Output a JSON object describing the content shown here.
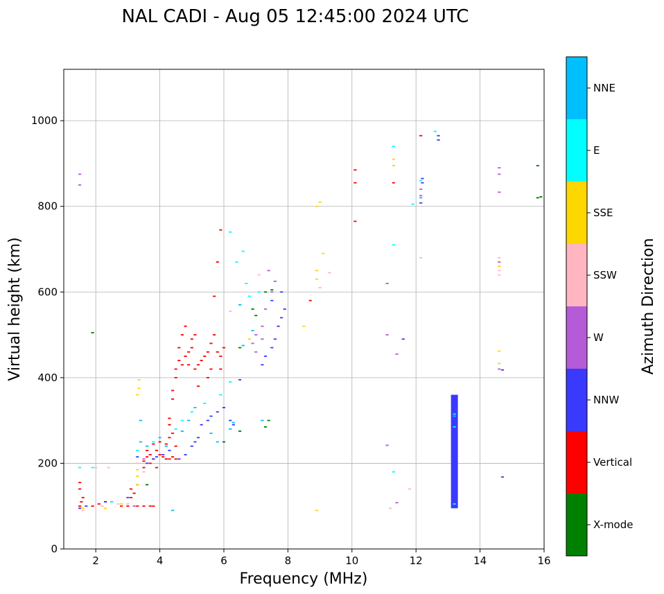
{
  "chart_data": {
    "type": "scatter",
    "title": "NAL CADI - Aug 05 12:45:00 2024 UTC",
    "xlabel": "Frequency (MHz)",
    "ylabel": "Virtual height (km)",
    "xlim": [
      1,
      16
    ],
    "ylim": [
      0,
      1120
    ],
    "xticks": [
      2,
      4,
      6,
      8,
      10,
      12,
      14,
      16
    ],
    "yticks": [
      0,
      200,
      400,
      600,
      800,
      1000
    ],
    "grid": true,
    "colorbar": {
      "label": "Azimuth Direction",
      "categories": [
        {
          "name": "X-mode",
          "color": "#008000"
        },
        {
          "name": "Vertical",
          "color": "#ff0000"
        },
        {
          "name": "NNW",
          "color": "#3a3aff"
        },
        {
          "name": "W",
          "color": "#b55bd8"
        },
        {
          "name": "SSW",
          "color": "#ffb6c1"
        },
        {
          "name": "SSE",
          "color": "#ffd700"
        },
        {
          "name": "E",
          "color": "#00ffff"
        },
        {
          "name": "NNE",
          "color": "#00bfff"
        }
      ]
    },
    "series": [
      {
        "name": "Vertical",
        "points": [
          [
            1.5,
            100
          ],
          [
            1.55,
            110
          ],
          [
            1.6,
            120
          ],
          [
            1.5,
            140
          ],
          [
            1.5,
            155
          ],
          [
            1.9,
            100
          ],
          [
            2.1,
            105
          ],
          [
            2.3,
            110
          ],
          [
            2.5,
            110
          ],
          [
            2.8,
            100
          ],
          [
            3.0,
            100
          ],
          [
            3.1,
            120
          ],
          [
            3.1,
            140
          ],
          [
            3.2,
            130
          ],
          [
            3.3,
            100
          ],
          [
            3.5,
            100
          ],
          [
            3.7,
            100
          ],
          [
            3.8,
            100
          ],
          [
            3.5,
            190
          ],
          [
            3.5,
            205
          ],
          [
            3.6,
            215
          ],
          [
            3.6,
            230
          ],
          [
            3.7,
            200
          ],
          [
            3.7,
            220
          ],
          [
            3.8,
            210
          ],
          [
            3.8,
            245
          ],
          [
            3.9,
            190
          ],
          [
            3.9,
            230
          ],
          [
            4.0,
            220
          ],
          [
            4.0,
            250
          ],
          [
            4.1,
            215
          ],
          [
            4.2,
            210
          ],
          [
            4.2,
            245
          ],
          [
            4.3,
            210
          ],
          [
            4.3,
            260
          ],
          [
            4.4,
            215
          ],
          [
            4.4,
            270
          ],
          [
            4.5,
            210
          ],
          [
            4.3,
            290
          ],
          [
            4.3,
            305
          ],
          [
            4.5,
            240
          ],
          [
            4.4,
            350
          ],
          [
            4.4,
            370
          ],
          [
            4.5,
            400
          ],
          [
            4.5,
            420
          ],
          [
            4.6,
            440
          ],
          [
            4.6,
            470
          ],
          [
            4.7,
            430
          ],
          [
            4.7,
            500
          ],
          [
            4.8,
            450
          ],
          [
            4.8,
            520
          ],
          [
            4.9,
            430
          ],
          [
            4.9,
            460
          ],
          [
            5.0,
            470
          ],
          [
            5.0,
            490
          ],
          [
            5.1,
            500
          ],
          [
            5.1,
            420
          ],
          [
            5.2,
            430
          ],
          [
            5.3,
            440
          ],
          [
            5.4,
            450
          ],
          [
            5.5,
            460
          ],
          [
            5.6,
            480
          ],
          [
            5.7,
            500
          ],
          [
            5.8,
            460
          ],
          [
            5.9,
            450
          ],
          [
            6.0,
            470
          ],
          [
            5.9,
            420
          ],
          [
            5.6,
            420
          ],
          [
            5.5,
            400
          ],
          [
            5.7,
            590
          ],
          [
            5.8,
            670
          ],
          [
            5.9,
            745
          ],
          [
            5.2,
            380
          ],
          [
            8.7,
            580
          ],
          [
            10.1,
            765
          ],
          [
            10.1,
            855
          ],
          [
            10.1,
            885
          ],
          [
            11.3,
            855
          ],
          [
            12.15,
            965
          ]
        ]
      },
      {
        "name": "NNW",
        "points": [
          [
            1.5,
            95
          ],
          [
            1.7,
            100
          ],
          [
            2.3,
            110
          ],
          [
            3.0,
            120
          ],
          [
            3.3,
            150
          ],
          [
            3.3,
            215
          ],
          [
            3.6,
            200
          ],
          [
            3.8,
            210
          ],
          [
            3.9,
            215
          ],
          [
            4.1,
            220
          ],
          [
            4.3,
            230
          ],
          [
            4.6,
            210
          ],
          [
            4.8,
            220
          ],
          [
            5.0,
            240
          ],
          [
            5.1,
            250
          ],
          [
            5.2,
            260
          ],
          [
            5.3,
            290
          ],
          [
            5.5,
            300
          ],
          [
            5.6,
            310
          ],
          [
            5.8,
            320
          ],
          [
            6.0,
            330
          ],
          [
            6.2,
            300
          ],
          [
            6.3,
            290
          ],
          [
            6.5,
            395
          ],
          [
            7.2,
            430
          ],
          [
            7.3,
            450
          ],
          [
            7.5,
            470
          ],
          [
            7.6,
            490
          ],
          [
            7.7,
            520
          ],
          [
            7.8,
            540
          ],
          [
            7.9,
            560
          ],
          [
            7.5,
            580
          ],
          [
            7.8,
            600
          ],
          [
            11.6,
            490
          ],
          [
            12.2,
            865
          ],
          [
            12.2,
            855
          ],
          [
            12.15,
            808
          ],
          [
            12.7,
            955
          ],
          [
            12.7,
            965
          ],
          [
            13.2,
            100
          ],
          [
            13.2,
            330
          ],
          [
            13.2,
            350
          ],
          [
            14.7,
            418
          ],
          [
            14.7,
            168
          ]
        ]
      },
      {
        "name": "W",
        "points": [
          [
            1.5,
            850
          ],
          [
            1.5,
            875
          ],
          [
            3.2,
            100
          ],
          [
            3.5,
            210
          ],
          [
            6.9,
            480
          ],
          [
            7.0,
            500
          ],
          [
            7.2,
            520
          ],
          [
            7.3,
            560
          ],
          [
            7.5,
            600
          ],
          [
            7.6,
            625
          ],
          [
            7.4,
            650
          ],
          [
            7.2,
            490
          ],
          [
            7.0,
            460
          ],
          [
            11.1,
            500
          ],
          [
            11.1,
            620
          ],
          [
            11.4,
            455
          ],
          [
            12.15,
            825
          ],
          [
            12.15,
            840
          ],
          [
            14.6,
            890
          ],
          [
            14.6,
            875
          ],
          [
            14.6,
            833
          ],
          [
            14.6,
            670
          ],
          [
            14.6,
            420
          ],
          [
            11.1,
            242
          ],
          [
            11.4,
            108
          ]
        ]
      },
      {
        "name": "SSW",
        "points": [
          [
            1.6,
            90
          ],
          [
            2.0,
            190
          ],
          [
            2.4,
            190
          ],
          [
            2.2,
            100
          ],
          [
            2.7,
            105
          ],
          [
            3.0,
            105
          ],
          [
            3.3,
            200
          ],
          [
            3.5,
            180
          ],
          [
            6.2,
            555
          ],
          [
            7.1,
            640
          ],
          [
            9.0,
            610
          ],
          [
            9.3,
            645
          ],
          [
            11.2,
            95
          ],
          [
            11.8,
            140
          ],
          [
            12.15,
            680
          ],
          [
            14.6,
            650
          ],
          [
            14.6,
            680
          ],
          [
            14.6,
            640
          ]
        ]
      },
      {
        "name": "SSE",
        "points": [
          [
            1.6,
            95
          ],
          [
            2.3,
            95
          ],
          [
            2.8,
            105
          ],
          [
            3.3,
            150
          ],
          [
            3.3,
            170
          ],
          [
            3.3,
            185
          ],
          [
            3.3,
            360
          ],
          [
            3.35,
            375
          ],
          [
            3.35,
            395
          ],
          [
            6.8,
            490
          ],
          [
            8.5,
            520
          ],
          [
            8.9,
            90
          ],
          [
            8.9,
            630
          ],
          [
            8.9,
            650
          ],
          [
            8.9,
            800
          ],
          [
            9.0,
            810
          ],
          [
            9.1,
            690
          ],
          [
            11.3,
            895
          ],
          [
            11.3,
            910
          ],
          [
            14.6,
            462
          ],
          [
            14.6,
            433
          ],
          [
            14.6,
            660
          ]
        ]
      },
      {
        "name": "E",
        "points": [
          [
            1.5,
            190
          ],
          [
            1.9,
            190
          ],
          [
            2.5,
            110
          ],
          [
            3.3,
            230
          ],
          [
            3.8,
            250
          ],
          [
            4.5,
            280
          ],
          [
            4.7,
            300
          ],
          [
            5.0,
            320
          ],
          [
            5.4,
            340
          ],
          [
            5.9,
            360
          ],
          [
            6.2,
            390
          ],
          [
            6.2,
            740
          ],
          [
            6.4,
            670
          ],
          [
            6.6,
            695
          ],
          [
            6.7,
            620
          ],
          [
            6.5,
            570
          ],
          [
            6.8,
            590
          ],
          [
            7.1,
            600
          ],
          [
            11.3,
            710
          ],
          [
            11.3,
            940
          ],
          [
            11.3,
            180
          ],
          [
            11.9,
            805
          ],
          [
            12.15,
            860
          ],
          [
            12.6,
            975
          ],
          [
            13.2,
            105
          ],
          [
            13.2,
            285
          ],
          [
            13.2,
            315
          ]
        ]
      },
      {
        "name": "NNE",
        "points": [
          [
            3.4,
            250
          ],
          [
            3.4,
            300
          ],
          [
            3.6,
            240
          ],
          [
            4.0,
            260
          ],
          [
            4.2,
            240
          ],
          [
            4.4,
            90
          ],
          [
            4.7,
            275
          ],
          [
            4.9,
            300
          ],
          [
            5.1,
            330
          ],
          [
            5.6,
            270
          ],
          [
            5.8,
            250
          ],
          [
            6.2,
            280
          ],
          [
            6.3,
            295
          ],
          [
            6.5,
            570
          ],
          [
            6.6,
            475
          ],
          [
            6.9,
            510
          ],
          [
            7.2,
            300
          ],
          [
            12.15,
            820
          ],
          [
            13.2,
            310
          ]
        ]
      },
      {
        "name": "X-mode",
        "points": [
          [
            1.9,
            505
          ],
          [
            3.6,
            150
          ],
          [
            6.0,
            250
          ],
          [
            6.5,
            470
          ],
          [
            6.5,
            275
          ],
          [
            6.9,
            560
          ],
          [
            7.0,
            545
          ],
          [
            7.3,
            600
          ],
          [
            7.3,
            285
          ],
          [
            7.4,
            300
          ],
          [
            7.5,
            605
          ],
          [
            15.8,
            895
          ],
          [
            15.8,
            820
          ],
          [
            15.9,
            822
          ]
        ]
      }
    ],
    "bars": [
      {
        "name": "NNW",
        "x": 13.2,
        "y_from": 95,
        "y_to": 360
      }
    ]
  }
}
